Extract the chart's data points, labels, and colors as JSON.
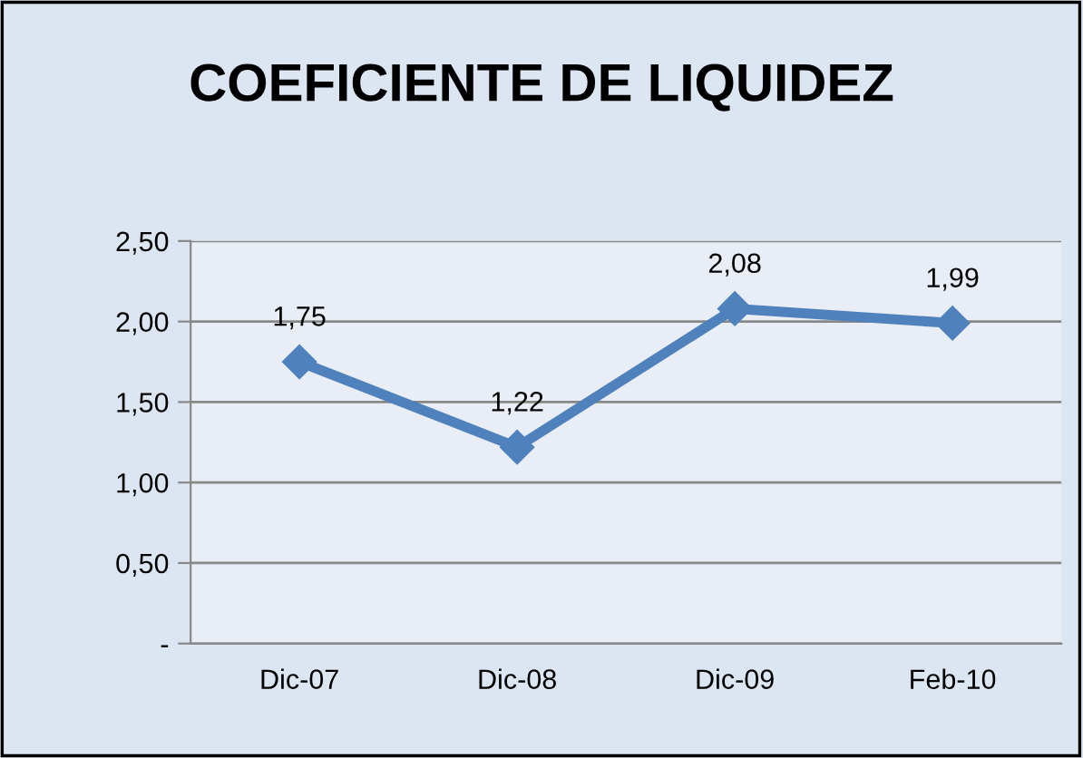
{
  "chart_data": {
    "type": "line",
    "title": "COEFICIENTE DE LIQUIDEZ",
    "categories": [
      "Dic-07",
      "Dic-08",
      "Dic-09",
      "Feb-10"
    ],
    "series": [
      {
        "color": "#4f81bd",
        "values": [
          1.75,
          1.22,
          2.08,
          1.99
        ],
        "value_labels": [
          "1,75",
          "1,22",
          "2,08",
          "1,99"
        ]
      }
    ],
    "ylim": [
      0,
      2.5
    ],
    "yticks": [
      {
        "value": 0,
        "label": "-"
      },
      {
        "value": 0.5,
        "label": "0,50"
      },
      {
        "value": 1.0,
        "label": "1,00"
      },
      {
        "value": 1.5,
        "label": "1,50"
      },
      {
        "value": 2.0,
        "label": "2,00"
      },
      {
        "value": 2.5,
        "label": "2,50"
      }
    ],
    "grid": "y",
    "marker": "diamond",
    "line_style": "solid",
    "legend": false
  }
}
